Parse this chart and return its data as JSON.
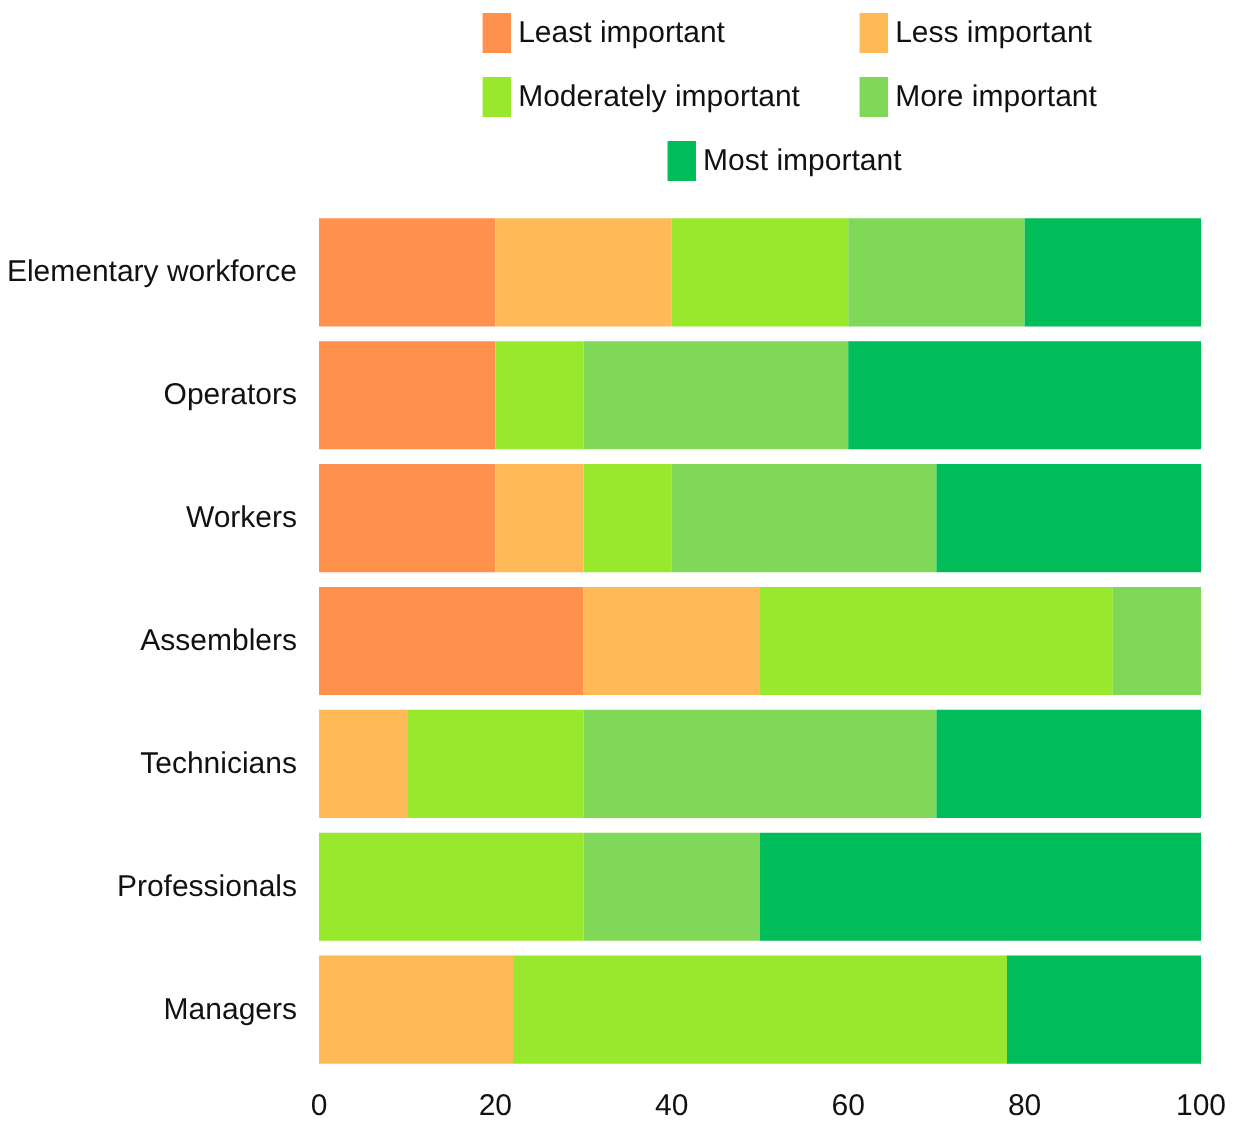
{
  "chart_data": {
    "type": "bar",
    "orientation": "horizontal",
    "stacked": true,
    "categories": [
      "Elementary workforce",
      "Operators",
      "Workers",
      "Assemblers",
      "Technicians",
      "Professionals",
      "Managers"
    ],
    "series": [
      {
        "name": "Least important",
        "color": "#ff914d",
        "values": [
          20,
          20,
          20,
          30,
          0,
          0,
          0
        ]
      },
      {
        "name": "Less important",
        "color": "#ffb957",
        "values": [
          20,
          0,
          10,
          20,
          10,
          0,
          22
        ]
      },
      {
        "name": "Moderately important",
        "color": "#98e82e",
        "values": [
          20,
          10,
          10,
          40,
          20,
          30,
          56
        ]
      },
      {
        "name": "More important",
        "color": "#80d858",
        "values": [
          20,
          30,
          30,
          10,
          40,
          20,
          0
        ]
      },
      {
        "name": "Most important",
        "color": "#00bd5a",
        "values": [
          20,
          40,
          30,
          0,
          30,
          50,
          22
        ]
      }
    ],
    "xlim": [
      0,
      100
    ],
    "xticks": [
      0,
      20,
      40,
      60,
      80,
      100
    ],
    "grid": false,
    "legend": "top"
  }
}
